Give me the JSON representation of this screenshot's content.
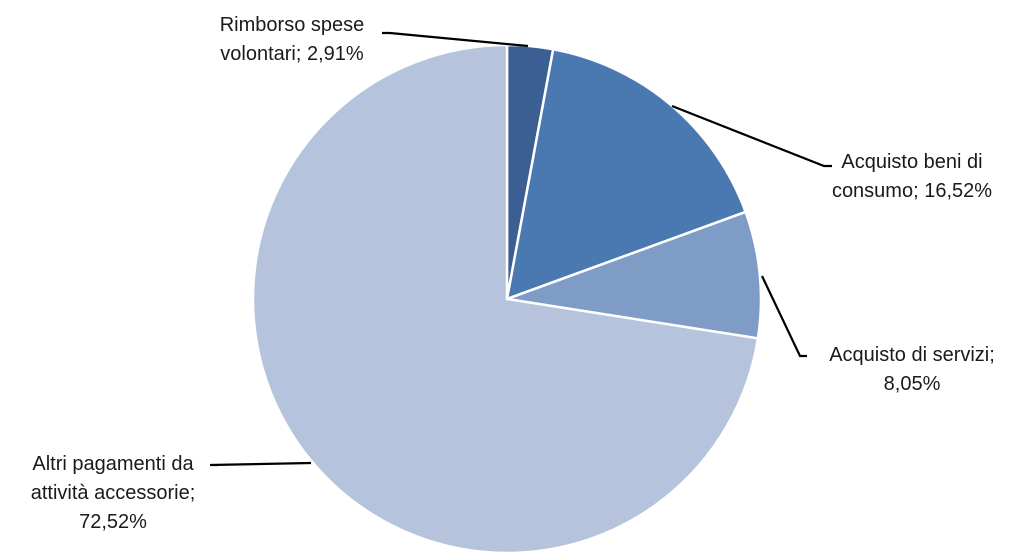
{
  "chart_data": {
    "type": "pie",
    "title": "",
    "start_angle_deg": 0,
    "direction": "clockwise",
    "slices": [
      {
        "name": "Rimborso spese volontari",
        "value": 2.91,
        "label": "2,91%",
        "label_lines": [
          "Rimborso spese",
          "volontari; 2,91%"
        ],
        "color": "#3b5f92"
      },
      {
        "name": "Acquisto beni di consumo",
        "value": 16.52,
        "label": "16,52%",
        "label_lines": [
          "Acquisto beni di",
          "consumo; 16,52%"
        ],
        "color": "#4a79b2"
      },
      {
        "name": "Acquisto di servizi",
        "value": 8.05,
        "label": "8,05%",
        "label_lines": [
          "Acquisto di servizi;",
          "8,05%"
        ],
        "color": "#7f9cc7"
      },
      {
        "name": "Altri pagamenti da attività accessorie",
        "value": 72.52,
        "label": "72,52%",
        "label_lines": [
          "Altri pagamenti da",
          "attività accessorie;",
          "72,52%"
        ],
        "color": "#b5c3dd"
      }
    ],
    "legend": "none"
  }
}
